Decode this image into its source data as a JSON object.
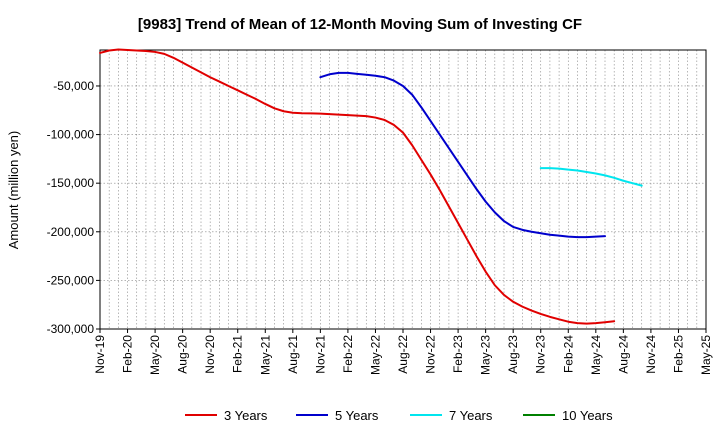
{
  "chart_data": {
    "type": "line",
    "title": "[9983]  Trend of Mean of 12-Month Moving Sum of Investing CF",
    "xlabel": "",
    "ylabel": "Amount (million yen)",
    "ylim": [
      -300000,
      -13000
    ],
    "yticks": [
      -50000,
      -100000,
      -150000,
      -200000,
      -250000,
      -300000
    ],
    "ytick_labels": [
      "-50,000",
      "-100,000",
      "-150,000",
      "-200,000",
      "-250,000",
      "-300,000"
    ],
    "x_start": "2019-11",
    "x_months": 66,
    "xtick_labels": [
      "Nov-19",
      "Feb-20",
      "May-20",
      "Aug-20",
      "Nov-20",
      "Feb-21",
      "May-21",
      "Aug-21",
      "Nov-21",
      "Feb-22",
      "May-22",
      "Aug-22",
      "Nov-22",
      "Feb-23",
      "May-23",
      "Aug-23",
      "Nov-23",
      "Feb-24",
      "May-24",
      "Aug-24",
      "Nov-24",
      "Feb-25",
      "May-25"
    ],
    "grid": true,
    "legend_position": "bottom",
    "series": [
      {
        "name": "3 Years",
        "color": "#e00000",
        "start_index": 0,
        "values": [
          -16000,
          -13500,
          -12500,
          -13000,
          -13500,
          -14000,
          -15000,
          -17000,
          -21000,
          -26000,
          -31000,
          -36000,
          -41000,
          -45500,
          -50000,
          -54500,
          -59000,
          -63500,
          -68500,
          -73000,
          -76000,
          -77500,
          -78000,
          -78200,
          -78500,
          -79000,
          -79500,
          -80000,
          -80500,
          -81000,
          -82500,
          -85000,
          -90000,
          -98000,
          -111000,
          -126000,
          -141000,
          -157000,
          -174000,
          -191000,
          -208000,
          -225000,
          -241000,
          -255000,
          -265000,
          -272000,
          -277000,
          -281000,
          -284500,
          -287500,
          -290000,
          -292500,
          -294000,
          -294500,
          -294000,
          -293000,
          -292000
        ]
      },
      {
        "name": "5 Years",
        "color": "#0000cc",
        "start_index": 24,
        "values": [
          -41000,
          -38000,
          -36500,
          -36500,
          -37500,
          -38500,
          -39500,
          -41000,
          -44500,
          -50000,
          -59000,
          -72000,
          -86000,
          -100000,
          -114000,
          -128000,
          -142000,
          -156000,
          -169000,
          -180000,
          -189000,
          -195000,
          -198000,
          -200000,
          -201500,
          -203000,
          -204000,
          -205000,
          -205500,
          -205500,
          -205000,
          -204500
        ]
      },
      {
        "name": "7 Years",
        "color": "#00e5ee",
        "start_index": 48,
        "values": [
          -134500,
          -134500,
          -135000,
          -136000,
          -137000,
          -138500,
          -140000,
          -142000,
          -144500,
          -147500,
          -150000,
          -152500
        ]
      },
      {
        "name": "10 Years",
        "color": "#008000",
        "start_index": 0,
        "values": []
      }
    ]
  }
}
